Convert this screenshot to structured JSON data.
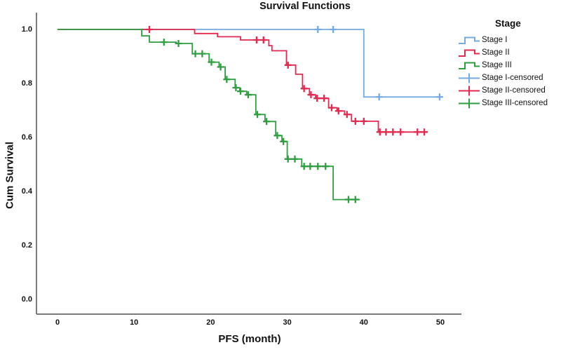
{
  "figure": {
    "title": "Survival Functions",
    "y_axis": {
      "label": "Cum Survival",
      "ticks": [
        "0.0",
        "0.2",
        "0.4",
        "0.6",
        "0.8",
        "1.0"
      ],
      "tick_values": [
        0.0,
        0.2,
        0.4,
        0.6,
        0.8,
        1.0
      ]
    },
    "x_axis": {
      "label": "PFS (month)",
      "ticks": [
        "0",
        "10",
        "20",
        "30",
        "40",
        "50"
      ],
      "tick_values": [
        0,
        10,
        20,
        30,
        40,
        50
      ]
    },
    "legend": {
      "title": "Stage",
      "items": [
        {
          "label": "Stage I",
          "glyph": "step",
          "color": "#74A9E1"
        },
        {
          "label": "Stage II",
          "glyph": "step",
          "color": "#E2294F"
        },
        {
          "label": "Stage III",
          "glyph": "step",
          "color": "#2F9E41"
        },
        {
          "label": "Stage I-censored",
          "glyph": "plus",
          "color": "#74A9E1"
        },
        {
          "label": "Stage II-censored",
          "glyph": "plus",
          "color": "#E2294F"
        },
        {
          "label": "Stage III-censored",
          "glyph": "plus",
          "color": "#2F9E41"
        }
      ]
    },
    "colors": {
      "axis": "#7b7b7b",
      "text": "#111111",
      "background": "#ffffff"
    }
  },
  "chart_data": {
    "type": "line",
    "subtype": "kaplan-meier-step",
    "title": "Survival Functions",
    "xlabel": "PFS (month)",
    "ylabel": "Cum Survival",
    "xlim": [
      0,
      53
    ],
    "ylim": [
      0,
      1.05
    ],
    "xticks": [
      0,
      10,
      20,
      30,
      40,
      50
    ],
    "yticks": [
      0.0,
      0.2,
      0.4,
      0.6,
      0.8,
      1.0
    ],
    "grid": false,
    "legend_position": "right",
    "legend_title": "Stage",
    "series": [
      {
        "name": "Stage I",
        "color": "#74A9E1",
        "steps": [
          [
            0,
            1.0
          ],
          [
            40,
            0.75
          ]
        ],
        "end_x": 50.3,
        "censored": [
          [
            34,
            1.0
          ],
          [
            36,
            1.0
          ],
          [
            42,
            0.75
          ],
          [
            49.9,
            0.75
          ]
        ]
      },
      {
        "name": "Stage II",
        "color": "#E2294F",
        "steps": [
          [
            0,
            1.0
          ],
          [
            17.9,
            0.985
          ],
          [
            20.9,
            0.973
          ],
          [
            23.9,
            0.961
          ],
          [
            27.6,
            0.94
          ],
          [
            28.0,
            0.921
          ],
          [
            29.9,
            0.868
          ],
          [
            31.1,
            0.834
          ],
          [
            32.0,
            0.781
          ],
          [
            32.9,
            0.758
          ],
          [
            33.7,
            0.745
          ],
          [
            35.4,
            0.71
          ],
          [
            36.5,
            0.698
          ],
          [
            37.5,
            0.685
          ],
          [
            38.4,
            0.66
          ],
          [
            41.9,
            0.62
          ]
        ],
        "end_x": 48.3,
        "censored": [
          [
            12,
            1.0
          ],
          [
            26.0,
            0.961
          ],
          [
            26.9,
            0.961
          ],
          [
            30.1,
            0.868
          ],
          [
            32.2,
            0.781
          ],
          [
            33.1,
            0.758
          ],
          [
            33.9,
            0.745
          ],
          [
            34.8,
            0.745
          ],
          [
            35.8,
            0.71
          ],
          [
            36.7,
            0.698
          ],
          [
            37.8,
            0.685
          ],
          [
            38.9,
            0.66
          ],
          [
            40.0,
            0.66
          ],
          [
            42.1,
            0.62
          ],
          [
            42.9,
            0.62
          ],
          [
            43.8,
            0.62
          ],
          [
            44.8,
            0.62
          ],
          [
            47.0,
            0.62
          ],
          [
            47.9,
            0.62
          ]
        ]
      },
      {
        "name": "Stage III",
        "color": "#2F9E41",
        "steps": [
          [
            0,
            1.0
          ],
          [
            11.0,
            0.976
          ],
          [
            12.0,
            0.953
          ],
          [
            15.5,
            0.948
          ],
          [
            17.6,
            0.91
          ],
          [
            19.8,
            0.879
          ],
          [
            21.1,
            0.861
          ],
          [
            21.9,
            0.815
          ],
          [
            23.2,
            0.784
          ],
          [
            23.8,
            0.771
          ],
          [
            24.7,
            0.758
          ],
          [
            25.9,
            0.685
          ],
          [
            27.1,
            0.659
          ],
          [
            28.5,
            0.607
          ],
          [
            29.3,
            0.585
          ],
          [
            30.0,
            0.52
          ],
          [
            31.9,
            0.493
          ],
          [
            36.0,
            0.37
          ]
        ],
        "end_x": 39.5,
        "censored": [
          [
            13.9,
            0.953
          ],
          [
            15.8,
            0.948
          ],
          [
            18.0,
            0.91
          ],
          [
            18.9,
            0.91
          ],
          [
            20.1,
            0.879
          ],
          [
            21.3,
            0.861
          ],
          [
            22.1,
            0.815
          ],
          [
            23.3,
            0.784
          ],
          [
            23.9,
            0.771
          ],
          [
            24.9,
            0.758
          ],
          [
            26.1,
            0.685
          ],
          [
            27.3,
            0.659
          ],
          [
            28.7,
            0.607
          ],
          [
            29.5,
            0.585
          ],
          [
            30.1,
            0.52
          ],
          [
            31.0,
            0.52
          ],
          [
            32.2,
            0.493
          ],
          [
            33.0,
            0.493
          ],
          [
            34.0,
            0.493
          ],
          [
            35.0,
            0.493
          ],
          [
            38.0,
            0.37
          ],
          [
            38.9,
            0.37
          ]
        ]
      }
    ]
  }
}
